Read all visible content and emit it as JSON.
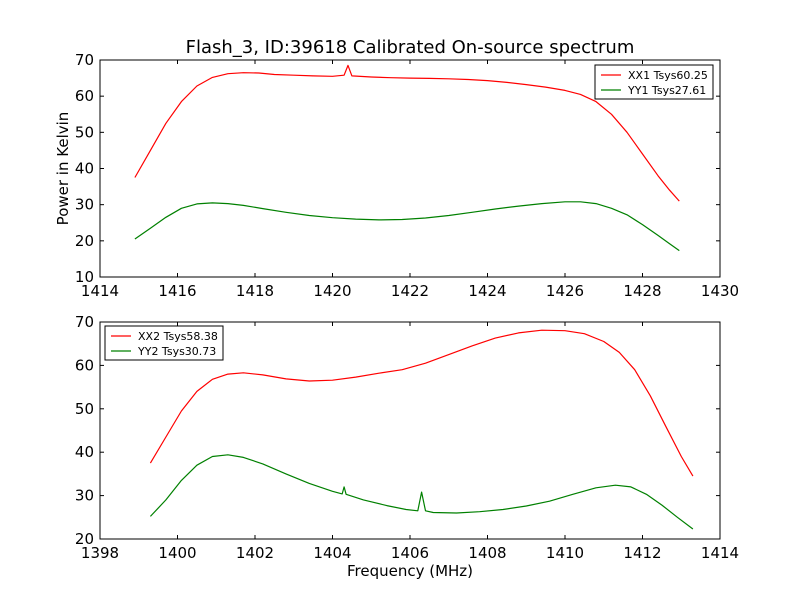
{
  "figure": {
    "title": "Flash_3, ID:39618 Calibrated On-source spectrum"
  },
  "chart_data": [
    {
      "type": "line",
      "title": "Flash_3, ID:39618 Calibrated On-source spectrum",
      "xlabel": "",
      "ylabel": "Power in Kelvin",
      "xlim": [
        1414,
        1430
      ],
      "ylim": [
        10,
        70
      ],
      "xticks": [
        "1414",
        "1416",
        "1418",
        "1420",
        "1422",
        "1424",
        "1426",
        "1428",
        "1430"
      ],
      "yticks": [
        "10",
        "20",
        "30",
        "40",
        "50",
        "60",
        "70"
      ],
      "grid": false,
      "legend_position": "top-right",
      "series": [
        {
          "name": "XX1 Tsys60.25",
          "color": "#ff0000",
          "x": [
            1414.9,
            1415.3,
            1415.7,
            1416.1,
            1416.5,
            1416.9,
            1417.3,
            1417.7,
            1418.1,
            1418.5,
            1419.0,
            1419.5,
            1420.0,
            1420.3,
            1420.4,
            1420.5,
            1421.0,
            1421.5,
            1422.0,
            1422.5,
            1423.0,
            1423.5,
            1424.0,
            1424.5,
            1425.0,
            1425.5,
            1426.0,
            1426.4,
            1426.8,
            1427.2,
            1427.6,
            1428.0,
            1428.4,
            1428.7,
            1428.95
          ],
          "y": [
            37.5,
            45.0,
            52.5,
            58.5,
            62.8,
            65.2,
            66.2,
            66.5,
            66.4,
            66.0,
            65.8,
            65.6,
            65.5,
            65.8,
            68.5,
            65.6,
            65.3,
            65.1,
            65.0,
            64.9,
            64.8,
            64.6,
            64.3,
            63.8,
            63.2,
            62.5,
            61.6,
            60.5,
            58.5,
            55.0,
            50.0,
            44.0,
            38.0,
            34.0,
            31.0
          ]
        },
        {
          "name": "YY1 Tsys27.61",
          "color": "#008000",
          "x": [
            1414.9,
            1415.3,
            1415.7,
            1416.1,
            1416.5,
            1416.9,
            1417.3,
            1417.7,
            1418.2,
            1418.8,
            1419.4,
            1420.0,
            1420.6,
            1421.2,
            1421.8,
            1422.4,
            1423.0,
            1423.6,
            1424.2,
            1424.8,
            1425.4,
            1426.0,
            1426.4,
            1426.8,
            1427.2,
            1427.6,
            1428.0,
            1428.4,
            1428.7,
            1428.95
          ],
          "y": [
            20.5,
            23.5,
            26.5,
            29.0,
            30.2,
            30.5,
            30.3,
            29.8,
            28.9,
            27.9,
            27.0,
            26.4,
            26.0,
            25.8,
            25.9,
            26.3,
            27.0,
            27.9,
            28.8,
            29.6,
            30.3,
            30.8,
            30.8,
            30.3,
            29.0,
            27.2,
            24.5,
            21.5,
            19.2,
            17.3
          ]
        }
      ]
    },
    {
      "type": "line",
      "title": "",
      "xlabel": "Frequency (MHz)",
      "ylabel": "",
      "xlim": [
        1398,
        1414
      ],
      "ylim": [
        20,
        70
      ],
      "xticks": [
        "1398",
        "1400",
        "1402",
        "1404",
        "1406",
        "1408",
        "1410",
        "1412",
        "1414"
      ],
      "yticks": [
        "20",
        "30",
        "40",
        "50",
        "60",
        "70"
      ],
      "grid": false,
      "legend_position": "top-left",
      "series": [
        {
          "name": "XX2 Tsys58.38",
          "color": "#ff0000",
          "x": [
            1399.3,
            1399.7,
            1400.1,
            1400.5,
            1400.9,
            1401.3,
            1401.7,
            1402.2,
            1402.8,
            1403.4,
            1404.0,
            1404.6,
            1405.2,
            1405.8,
            1406.4,
            1407.0,
            1407.6,
            1408.2,
            1408.8,
            1409.4,
            1410.0,
            1410.5,
            1411.0,
            1411.4,
            1411.8,
            1412.2,
            1412.6,
            1413.0,
            1413.3
          ],
          "y": [
            37.5,
            43.5,
            49.5,
            54.0,
            56.8,
            58.0,
            58.3,
            57.8,
            56.9,
            56.4,
            56.6,
            57.3,
            58.2,
            59.0,
            60.5,
            62.5,
            64.5,
            66.3,
            67.5,
            68.1,
            68.0,
            67.3,
            65.5,
            63.0,
            59.0,
            53.0,
            46.0,
            39.0,
            34.5
          ]
        },
        {
          "name": "YY2 Tsys30.73",
          "color": "#008000",
          "x": [
            1399.3,
            1399.7,
            1400.1,
            1400.5,
            1400.9,
            1401.3,
            1401.7,
            1402.2,
            1402.8,
            1403.4,
            1404.0,
            1404.25,
            1404.3,
            1404.35,
            1404.8,
            1405.4,
            1405.9,
            1406.2,
            1406.3,
            1406.4,
            1406.6,
            1407.2,
            1407.8,
            1408.4,
            1409.0,
            1409.6,
            1410.2,
            1410.8,
            1411.3,
            1411.7,
            1412.1,
            1412.5,
            1412.9,
            1413.3
          ],
          "y": [
            25.2,
            29.0,
            33.5,
            37.0,
            39.0,
            39.4,
            38.8,
            37.3,
            35.0,
            32.8,
            31.0,
            30.4,
            32.0,
            30.3,
            29.0,
            27.7,
            26.8,
            26.5,
            30.8,
            26.5,
            26.1,
            26.0,
            26.3,
            26.8,
            27.6,
            28.7,
            30.3,
            31.8,
            32.4,
            32.0,
            30.3,
            27.8,
            25.0,
            22.3
          ]
        }
      ]
    }
  ]
}
